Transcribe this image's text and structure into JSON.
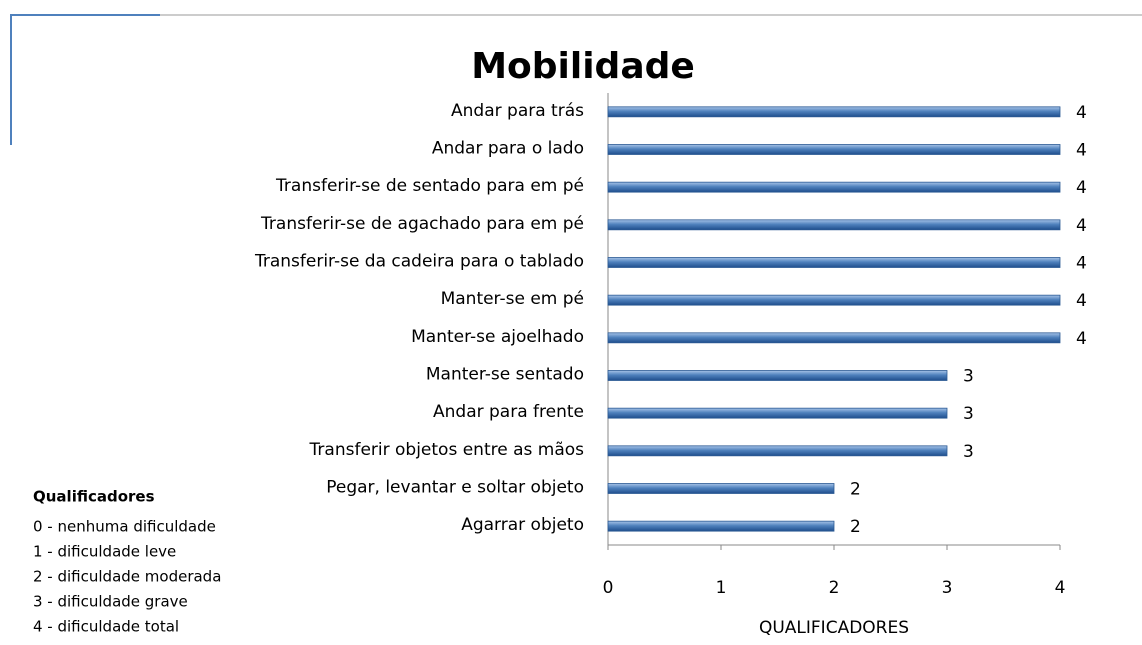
{
  "chart_data": {
    "type": "barh",
    "title": "Mobilidade",
    "categories": [
      "Andar para trás",
      "Andar para o lado",
      "Transferir-se de sentado para em pé",
      "Transferir-se de agachado para em pé",
      "Transferir-se da cadeira para o tablado",
      "Manter-se em pé",
      "Manter-se ajoelhado",
      "Manter-se sentado",
      "Andar para frente",
      "Transferir objetos entre as mãos",
      "Pegar, levantar e soltar objeto",
      "Agarrar objeto"
    ],
    "values": [
      4,
      4,
      4,
      4,
      4,
      4,
      4,
      3,
      3,
      3,
      2,
      2
    ],
    "color": "#4f81bd",
    "xlabel": "QUALIFICADORES",
    "xlim": [
      0,
      4
    ],
    "xticks": [
      0,
      1,
      2,
      3,
      4
    ],
    "qualifier_legend": {
      "title": "Qualificadores",
      "items": [
        "0 - nenhuma dificuldade",
        "1 - dificuldade leve",
        "2 - dificuldade moderada",
        "3 - dificuldade grave",
        "4 - dificuldade total"
      ]
    }
  }
}
